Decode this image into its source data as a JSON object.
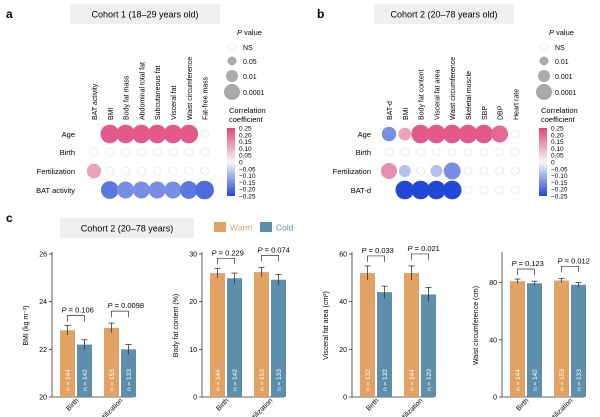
{
  "panel_a": {
    "letter": "a",
    "cohort_title": "Cohort 1 (18–29 years old)",
    "columns": [
      "BAT activity",
      "BMI",
      "Body fat mass",
      "Abdominal total fat",
      "Subcutaneous fat",
      "Visceral fat",
      "Waist circumference",
      "Fat-free mass"
    ],
    "rows": [
      "Age",
      "Birth",
      "Fertilization",
      "BAT activity"
    ],
    "pvalue_title": "P value",
    "pvalue_levels": [
      "NS",
      "0.05",
      "0.01",
      "0.0001"
    ],
    "colorbar_title": "Correlation coefficient",
    "colorbar_ticks": [
      "0.25",
      "0.20",
      "0.15",
      "0.10",
      "0.05",
      "0",
      "−0.05",
      "−0.10",
      "−0.15",
      "−0.20",
      "−0.25"
    ],
    "matrix": [
      [
        null,
        0.22,
        0.22,
        0.22,
        0.22,
        0.22,
        0.22,
        0.01
      ],
      [
        0.01,
        0.01,
        0.01,
        0.01,
        0.01,
        0.01,
        0.01,
        0.01
      ],
      [
        0.12,
        0.01,
        0.01,
        0.01,
        0.01,
        0.01,
        0.01,
        0.01
      ],
      [
        null,
        -0.18,
        -0.15,
        -0.15,
        -0.15,
        -0.15,
        -0.18,
        -0.2
      ]
    ],
    "sizes": [
      [
        0,
        3,
        3,
        3,
        3,
        3,
        3,
        0
      ],
      [
        0,
        0,
        0,
        0,
        0,
        0,
        0,
        0
      ],
      [
        2,
        0,
        0,
        0,
        0,
        0,
        0,
        0
      ],
      [
        0,
        2.8,
        2.6,
        2.6,
        2.6,
        2.6,
        2.8,
        3
      ]
    ]
  },
  "panel_b": {
    "letter": "b",
    "cohort_title": "Cohort 2 (20–78 years old)",
    "columns": [
      "BAT-d",
      "BMI",
      "Body fat content",
      "Visceral fat area",
      "Waist circumference",
      "Skeletal muscle",
      "SBP",
      "DBP",
      "Heart rate"
    ],
    "rows": [
      "Age",
      "Birth",
      "Fertilization",
      "BAT-d"
    ],
    "pvalue_title": "P value",
    "pvalue_levels": [
      "NS",
      "0.01",
      "0.001",
      "0.0001"
    ],
    "colorbar_title": "Correlation coefficient",
    "colorbar_ticks": [
      "0.25",
      "0.20",
      "0.15",
      "0.10",
      "0.05",
      "0",
      "−0.05",
      "−0.10",
      "−0.15",
      "−0.20",
      "−0.25"
    ],
    "matrix": [
      [
        -0.15,
        0.12,
        0.22,
        0.22,
        0.22,
        0.22,
        0.22,
        0.2,
        0.01
      ],
      [
        0.01,
        0.01,
        0.01,
        0.01,
        0.01,
        0.01,
        0.01,
        0.01,
        0.01
      ],
      [
        0.15,
        -0.08,
        0.01,
        -0.08,
        -0.15,
        0.01,
        0.01,
        0.01,
        0.01
      ],
      [
        null,
        -0.25,
        -0.25,
        -0.25,
        -0.25,
        0.01,
        0.01,
        0.01,
        0.01
      ]
    ],
    "sizes": [
      [
        2,
        1.6,
        3,
        3,
        3,
        3,
        3,
        2.6,
        0
      ],
      [
        0,
        0,
        0,
        0,
        0,
        0,
        0,
        0,
        0
      ],
      [
        2.4,
        1.4,
        0,
        1.4,
        2.6,
        0,
        0,
        0,
        0
      ],
      [
        0,
        3,
        3,
        3,
        3,
        0,
        0,
        0,
        0
      ]
    ]
  },
  "panel_c": {
    "letter": "c",
    "cohort_title": "Cohort 2 (20–78 years)",
    "legend": [
      {
        "name": "Warm",
        "color": "#e1a263"
      },
      {
        "name": "Cold",
        "color": "#5d8eab"
      }
    ]
  },
  "chart_data": [
    {
      "type": "bar",
      "title": "",
      "ylabel": "BMI (kg m⁻²)",
      "ylim": [
        20,
        26
      ],
      "yticks": [
        "20",
        "22",
        "24",
        "26"
      ],
      "categories": [
        "Birth",
        "Fertilization"
      ],
      "series": [
        {
          "name": "Warm",
          "values": [
            22.8,
            22.9
          ],
          "errors": [
            0.2,
            0.2
          ],
          "n": [
            "n = 144",
            "n = 153"
          ]
        },
        {
          "name": "Cold",
          "values": [
            22.2,
            22.0
          ],
          "errors": [
            0.2,
            0.2
          ],
          "n": [
            "n = 142",
            "n = 133"
          ]
        }
      ],
      "pvalues": [
        "P = 0.106",
        "P = 0.0098"
      ]
    },
    {
      "type": "bar",
      "title": "",
      "ylabel": "Body fat content (%)",
      "ylim": [
        0,
        30
      ],
      "yticks": [
        "0",
        "10",
        "20",
        "30"
      ],
      "categories": [
        "Birth",
        "Fertilization"
      ],
      "series": [
        {
          "name": "Warm",
          "values": [
            26.0,
            26.2
          ],
          "errors": [
            1.0,
            1.0
          ],
          "n": [
            "n = 144",
            "n = 153"
          ]
        },
        {
          "name": "Cold",
          "values": [
            24.9,
            24.6
          ],
          "errors": [
            1.1,
            1.1
          ],
          "n": [
            "n = 142",
            "n = 133"
          ]
        }
      ],
      "pvalues": [
        "P = 0.229",
        "P = 0.074"
      ]
    },
    {
      "type": "bar",
      "title": "",
      "ylabel": "Visceral fat area (cm²)",
      "ylim": [
        0,
        60
      ],
      "yticks": [
        "0",
        "20",
        "40",
        "60"
      ],
      "categories": [
        "Birth",
        "Fertilization"
      ],
      "series": [
        {
          "name": "Warm",
          "values": [
            52,
            52
          ],
          "errors": [
            3,
            3
          ],
          "n": [
            "n = 132",
            "n = 144"
          ]
        },
        {
          "name": "Cold",
          "values": [
            44,
            43
          ],
          "errors": [
            2.5,
            3
          ],
          "n": [
            "n = 132",
            "n = 120"
          ]
        }
      ],
      "pvalues": [
        "P = 0.033",
        "P = 0.021"
      ]
    },
    {
      "type": "bar",
      "title": "",
      "ylabel": "Waist circumference (cm)",
      "ylim": [
        0,
        100
      ],
      "yticks": [
        "0",
        "40",
        "80"
      ],
      "categories": [
        "Birth",
        "Fertilization"
      ],
      "series": [
        {
          "name": "Warm",
          "values": [
            81,
            81.5
          ],
          "errors": [
            1.5,
            1.5
          ],
          "n": [
            "n = 144",
            "n = 153"
          ]
        },
        {
          "name": "Cold",
          "values": [
            79.5,
            78.5
          ],
          "errors": [
            1.5,
            1.5
          ],
          "n": [
            "n = 142",
            "n = 133"
          ]
        }
      ],
      "pvalues": [
        "P = 0.123",
        "P = 0.012"
      ]
    }
  ]
}
